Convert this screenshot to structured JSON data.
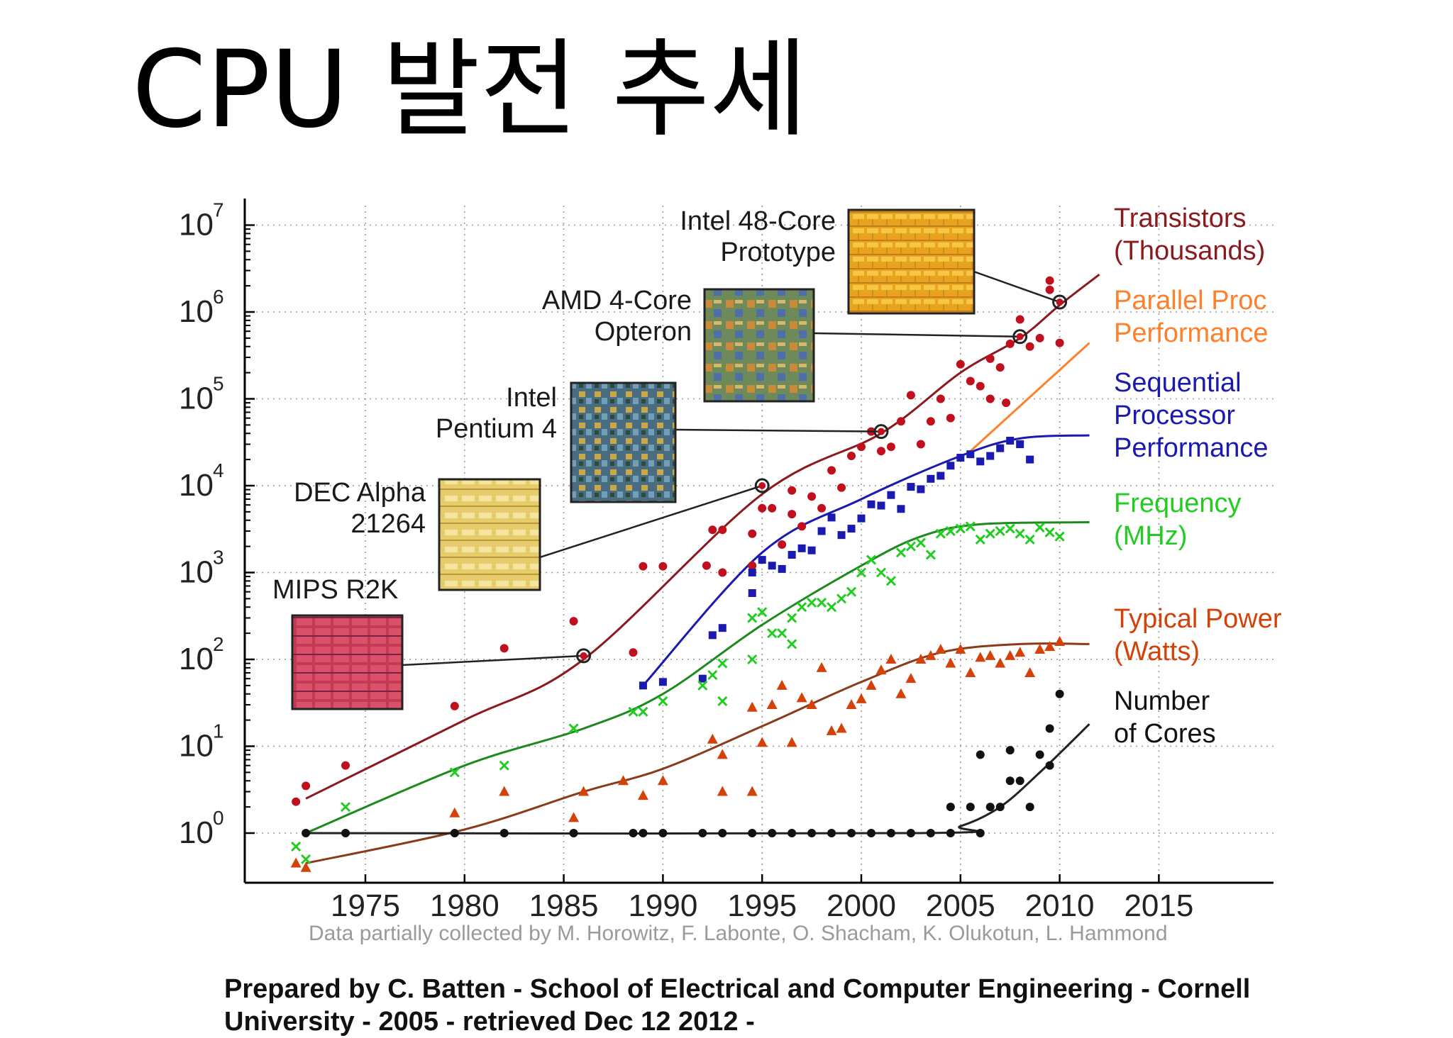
{
  "slide": {
    "title": "CPU 발전 추세",
    "credit": "Data partially collected by M. Horowitz, F. Labonte, O. Shacham, K. Olukotun, L. Hammond",
    "prepared_by": "Prepared by C. Batten - School of Electrical and Computer Engineering - Cornell University - 2005 - retrieved Dec 12 2012 -"
  },
  "chart_data": {
    "type": "scatter",
    "y_scale": "log",
    "xlim": [
      1970,
      2020
    ],
    "ylim": [
      0.3,
      10000000
    ],
    "x_ticks": [
      "1975",
      "1980",
      "1985",
      "1990",
      "1995",
      "2000",
      "2005",
      "2010",
      "2015"
    ],
    "y_ticks": [
      {
        "base": "10",
        "exp": "0"
      },
      {
        "base": "10",
        "exp": "1"
      },
      {
        "base": "10",
        "exp": "2"
      },
      {
        "base": "10",
        "exp": "3"
      },
      {
        "base": "10",
        "exp": "4"
      },
      {
        "base": "10",
        "exp": "5"
      },
      {
        "base": "10",
        "exp": "6"
      },
      {
        "base": "10",
        "exp": "7"
      }
    ],
    "grid": "dotted",
    "series": [
      {
        "name": "Transistors (Thousands)",
        "label_lines": [
          "Transistors",
          "(Thousands)"
        ],
        "color": "#c0101e",
        "line_color": "#8b1a1f",
        "marker": "circle",
        "trend": [
          [
            1972,
            2.5
          ],
          [
            1980,
            20
          ],
          [
            1986,
            100
          ],
          [
            1995,
            8000
          ],
          [
            2001,
            40000
          ],
          [
            2005,
            200000
          ],
          [
            2008,
            500000
          ],
          [
            2010,
            1200000
          ],
          [
            2012,
            2700000
          ]
        ],
        "points": [
          [
            1971.5,
            2.3
          ],
          [
            1972,
            3.5
          ],
          [
            1974,
            6
          ],
          [
            1979.5,
            29
          ],
          [
            1982,
            134
          ],
          [
            1985.5,
            275
          ],
          [
            1988.5,
            120
          ],
          [
            1989,
            1180
          ],
          [
            1990,
            1180
          ],
          [
            1992.2,
            1200
          ],
          [
            1992.5,
            3100
          ],
          [
            1993,
            3100
          ],
          [
            1993,
            1000
          ],
          [
            1994.5,
            1200
          ],
          [
            1994.5,
            2800
          ],
          [
            1995,
            5500
          ],
          [
            1995.5,
            5500
          ],
          [
            1996,
            2100
          ],
          [
            1996.5,
            4700
          ],
          [
            1996.5,
            8800
          ],
          [
            1997,
            3400
          ],
          [
            1997.5,
            7500
          ],
          [
            1998,
            5500
          ],
          [
            1998.5,
            15000
          ],
          [
            1999,
            9500
          ],
          [
            1999.5,
            22000
          ],
          [
            2000,
            28000
          ],
          [
            2000.5,
            42000
          ],
          [
            2001,
            25000
          ],
          [
            2001.5,
            28000
          ],
          [
            2002,
            55000
          ],
          [
            2002.5,
            110000
          ],
          [
            2003,
            30000
          ],
          [
            2003.5,
            55000
          ],
          [
            2004,
            100000
          ],
          [
            2004.5,
            60000
          ],
          [
            2005,
            250000
          ],
          [
            2005.5,
            160000
          ],
          [
            2006,
            140000
          ],
          [
            2006.5,
            100000
          ],
          [
            2006.5,
            290000
          ],
          [
            2007,
            230000
          ],
          [
            2007.3,
            90000
          ],
          [
            2007.5,
            430000
          ],
          [
            2008,
            820000
          ],
          [
            2008.5,
            400000
          ],
          [
            2009,
            500000
          ],
          [
            2009.5,
            2300000
          ],
          [
            2009.5,
            1800000
          ],
          [
            2010,
            440000
          ]
        ]
      },
      {
        "name": "Parallel Proc Performance",
        "label_lines": [
          "Parallel Proc",
          "Performance"
        ],
        "color": "#ff7f2a",
        "line_color": "#ff7f2a",
        "marker": "none",
        "trend": [
          [
            2005.5,
            25000
          ],
          [
            2011.5,
            440000
          ]
        ],
        "points": []
      },
      {
        "name": "Sequential Processor Performance",
        "label_lines": [
          "Sequential",
          "Processor",
          "Performance"
        ],
        "color": "#1a1ab0",
        "line_color": "#1a1ab0",
        "marker": "square",
        "trend": [
          [
            1989,
            50
          ],
          [
            1995,
            1700
          ],
          [
            2000,
            7000
          ],
          [
            2005,
            22000
          ],
          [
            2008,
            35000
          ],
          [
            2011.5,
            38000
          ]
        ],
        "points": [
          [
            1989,
            50
          ],
          [
            1990,
            55
          ],
          [
            1992,
            60
          ],
          [
            1992.5,
            190
          ],
          [
            1993,
            230
          ],
          [
            1994.5,
            580
          ],
          [
            1994.5,
            1000
          ],
          [
            1995,
            1400
          ],
          [
            1995.5,
            1200
          ],
          [
            1996,
            1100
          ],
          [
            1996.5,
            1600
          ],
          [
            1997,
            1900
          ],
          [
            1997.5,
            1800
          ],
          [
            1998,
            3000
          ],
          [
            1998.5,
            4300
          ],
          [
            1999,
            2700
          ],
          [
            1999.5,
            3200
          ],
          [
            2000,
            4200
          ],
          [
            2000.5,
            6100
          ],
          [
            2001,
            5900
          ],
          [
            2001.5,
            7800
          ],
          [
            2002,
            5400
          ],
          [
            2002.5,
            9700
          ],
          [
            2003,
            9100
          ],
          [
            2003.5,
            12000
          ],
          [
            2004,
            13000
          ],
          [
            2004.5,
            17000
          ],
          [
            2005,
            21000
          ],
          [
            2005.5,
            23000
          ],
          [
            2006,
            19000
          ],
          [
            2006.5,
            22000
          ],
          [
            2007,
            27000
          ],
          [
            2007.5,
            33000
          ],
          [
            2008,
            30000
          ],
          [
            2008.5,
            20000
          ]
        ]
      },
      {
        "name": "Frequency (MHz)",
        "label_lines": [
          "Frequency",
          "(MHz)"
        ],
        "color": "#22cc22",
        "line_color": "#1c8a1c",
        "marker": "x",
        "trend": [
          [
            1972,
            1
          ],
          [
            1980,
            6
          ],
          [
            1986,
            16
          ],
          [
            1990,
            40
          ],
          [
            1995,
            250
          ],
          [
            2000,
            1200
          ],
          [
            2003,
            2600
          ],
          [
            2006,
            3600
          ],
          [
            2011.5,
            3800
          ]
        ],
        "points": [
          [
            1971.5,
            0.7
          ],
          [
            1972,
            0.5
          ],
          [
            1974,
            2
          ],
          [
            1979.5,
            5
          ],
          [
            1982,
            6
          ],
          [
            1985.5,
            16
          ],
          [
            1988.5,
            25
          ],
          [
            1989,
            25
          ],
          [
            1990,
            33
          ],
          [
            1992,
            50
          ],
          [
            1992.5,
            66
          ],
          [
            1993,
            33
          ],
          [
            1993,
            90
          ],
          [
            1994.5,
            100
          ],
          [
            1994.5,
            300
          ],
          [
            1995,
            350
          ],
          [
            1995.5,
            200
          ],
          [
            1996,
            200
          ],
          [
            1996.5,
            150
          ],
          [
            1996.5,
            300
          ],
          [
            1997,
            400
          ],
          [
            1997.5,
            450
          ],
          [
            1998,
            450
          ],
          [
            1998.5,
            400
          ],
          [
            1999,
            500
          ],
          [
            1999.5,
            600
          ],
          [
            2000,
            1000
          ],
          [
            2000.5,
            1400
          ],
          [
            2001,
            1000
          ],
          [
            2001.5,
            800
          ],
          [
            2002,
            1700
          ],
          [
            2002.5,
            2000
          ],
          [
            2003,
            2200
          ],
          [
            2003.5,
            1600
          ],
          [
            2004,
            2800
          ],
          [
            2004.5,
            3000
          ],
          [
            2005,
            3200
          ],
          [
            2005.5,
            3400
          ],
          [
            2006,
            2400
          ],
          [
            2006.5,
            2800
          ],
          [
            2007,
            3000
          ],
          [
            2007.5,
            3200
          ],
          [
            2008,
            2800
          ],
          [
            2008.5,
            2400
          ],
          [
            2009,
            3300
          ],
          [
            2009.5,
            2900
          ],
          [
            2010,
            2600
          ]
        ]
      },
      {
        "name": "Typical Power (Watts)",
        "label_lines": [
          "Typical Power",
          "(Watts)"
        ],
        "color": "#d4420a",
        "line_color": "#8b3a1a",
        "marker": "triangle",
        "trend": [
          [
            1972,
            0.45
          ],
          [
            1980,
            1.1
          ],
          [
            1986,
            3
          ],
          [
            1990,
            5.5
          ],
          [
            1995,
            17
          ],
          [
            2000,
            55
          ],
          [
            2004,
            120
          ],
          [
            2008,
            150
          ],
          [
            2011.5,
            150
          ]
        ],
        "points": [
          [
            1971.5,
            0.45
          ],
          [
            1972,
            0.4
          ],
          [
            1979.5,
            1.7
          ],
          [
            1982,
            3
          ],
          [
            1985.5,
            1.5
          ],
          [
            1986,
            3
          ],
          [
            1988,
            4
          ],
          [
            1989,
            2.7
          ],
          [
            1990,
            4
          ],
          [
            1992.5,
            12
          ],
          [
            1993,
            8
          ],
          [
            1993,
            3
          ],
          [
            1994.5,
            3
          ],
          [
            1994.5,
            28
          ],
          [
            1995,
            11
          ],
          [
            1995.5,
            30
          ],
          [
            1996,
            50
          ],
          [
            1996.5,
            11
          ],
          [
            1997,
            36
          ],
          [
            1997.5,
            30
          ],
          [
            1998,
            80
          ],
          [
            1998.5,
            15
          ],
          [
            1999,
            16
          ],
          [
            1999.5,
            30
          ],
          [
            2000,
            35
          ],
          [
            2000.5,
            50
          ],
          [
            2001,
            75
          ],
          [
            2001.5,
            100
          ],
          [
            2002,
            40
          ],
          [
            2002.5,
            60
          ],
          [
            2003,
            100
          ],
          [
            2003.5,
            110
          ],
          [
            2004,
            130
          ],
          [
            2004.5,
            90
          ],
          [
            2005,
            130
          ],
          [
            2005.5,
            70
          ],
          [
            2006,
            105
          ],
          [
            2006.5,
            110
          ],
          [
            2007,
            90
          ],
          [
            2007.5,
            110
          ],
          [
            2008,
            120
          ],
          [
            2008.5,
            70
          ],
          [
            2009,
            130
          ],
          [
            2009.5,
            140
          ],
          [
            2010,
            160
          ]
        ]
      },
      {
        "name": "Number of Cores",
        "label_lines": [
          "Number",
          "of Cores"
        ],
        "color": "#111111",
        "line_color": "#222222",
        "marker": "circle",
        "trend": [
          [
            1972,
            1
          ],
          [
            2003,
            1
          ],
          [
            2005,
            1.2
          ],
          [
            2007,
            2
          ],
          [
            2009,
            5
          ],
          [
            2011.5,
            18
          ]
        ],
        "points": [
          [
            1972,
            1
          ],
          [
            1974,
            1
          ],
          [
            1979.5,
            1
          ],
          [
            1982,
            1
          ],
          [
            1985.5,
            1
          ],
          [
            1988.5,
            1
          ],
          [
            1989,
            1
          ],
          [
            1990,
            1
          ],
          [
            1992,
            1
          ],
          [
            1993,
            1
          ],
          [
            1994.5,
            1
          ],
          [
            1995.5,
            1
          ],
          [
            1996.5,
            1
          ],
          [
            1997.5,
            1
          ],
          [
            1998.5,
            1
          ],
          [
            1999.5,
            1
          ],
          [
            2000.5,
            1
          ],
          [
            2001.5,
            1
          ],
          [
            2002.5,
            1
          ],
          [
            2003.5,
            1
          ],
          [
            2004.5,
            1
          ],
          [
            2004.5,
            2
          ],
          [
            2005.5,
            2
          ],
          [
            2006,
            1
          ],
          [
            2006,
            8
          ],
          [
            2006.5,
            2
          ],
          [
            2007,
            2
          ],
          [
            2007.5,
            9
          ],
          [
            2007.5,
            4
          ],
          [
            2008,
            4
          ],
          [
            2008.5,
            2
          ],
          [
            2009,
            8
          ],
          [
            2009.5,
            16
          ],
          [
            2009.5,
            6
          ],
          [
            2010,
            40
          ]
        ]
      }
    ],
    "annotations": [
      {
        "name": "MIPS R2K",
        "label_lines": [
          "MIPS R2K"
        ],
        "x": 1986,
        "y": 110,
        "chip": "mips"
      },
      {
        "name": "DEC Alpha 21264",
        "label_lines": [
          "DEC Alpha",
          "21264"
        ],
        "x": 1995,
        "y": 10000,
        "chip": "alpha"
      },
      {
        "name": "Intel Pentium 4",
        "label_lines": [
          "Intel",
          "Pentium 4"
        ],
        "x": 2001,
        "y": 42000,
        "chip": "p4"
      },
      {
        "name": "AMD 4-Core Opteron",
        "label_lines": [
          "AMD 4-Core",
          "Opteron"
        ],
        "x": 2008,
        "y": 520000,
        "chip": "opteron"
      },
      {
        "name": "Intel 48-Core Prototype",
        "label_lines": [
          "Intel 48-Core",
          "Prototype"
        ],
        "x": 2010,
        "y": 1300000,
        "chip": "intel48"
      }
    ]
  }
}
